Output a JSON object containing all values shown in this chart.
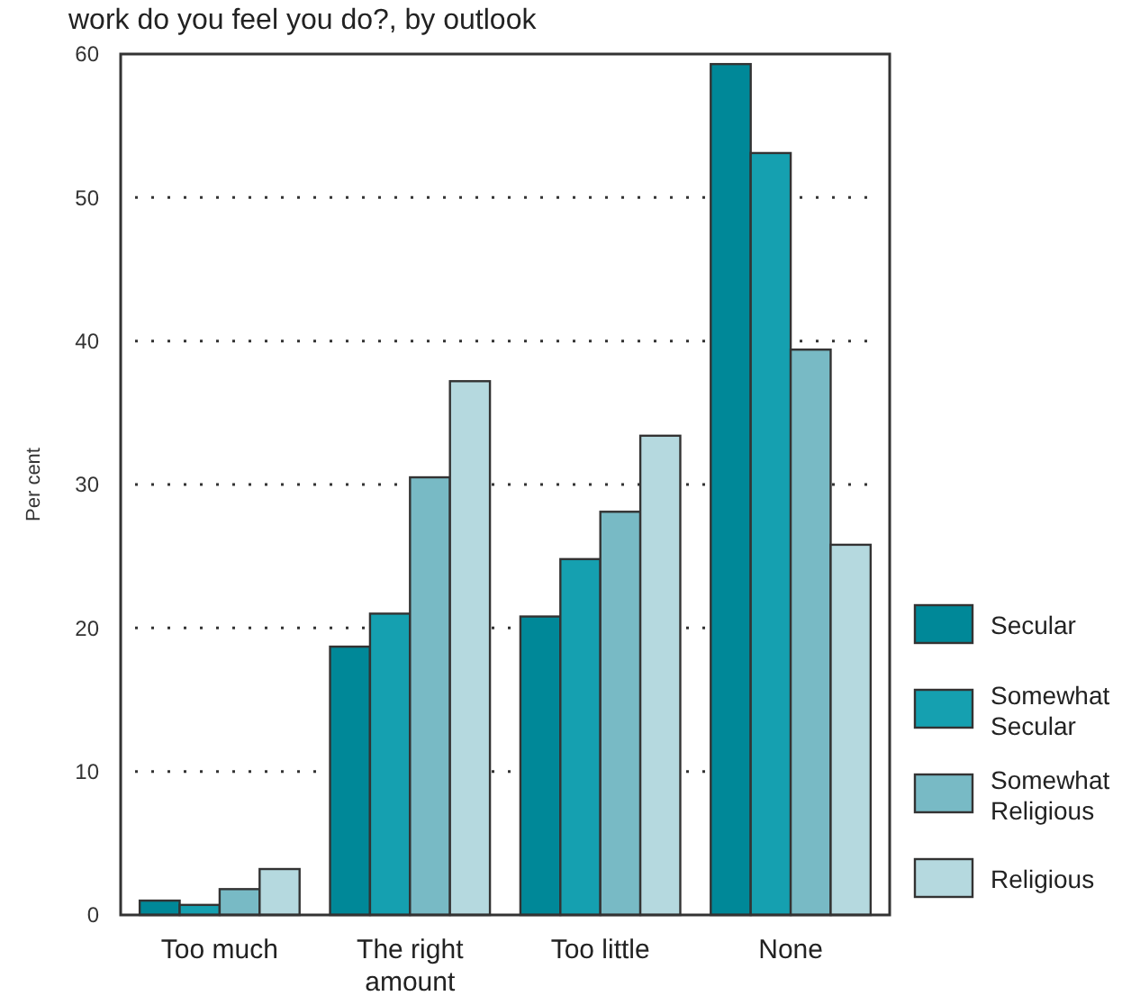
{
  "chart_data": {
    "type": "bar",
    "title": "work do you feel you do?, by outlook",
    "ylabel": "Per cent",
    "categories": [
      "Too much",
      "The right amount",
      "Too little",
      "None"
    ],
    "series": [
      {
        "name": "Secular",
        "color": "#008898",
        "values": [
          1.0,
          18.7,
          20.8,
          59.3
        ]
      },
      {
        "name": "Somewhat Secular",
        "color": "#15a0b0",
        "values": [
          0.7,
          21.0,
          24.8,
          53.1
        ]
      },
      {
        "name": "Somewhat Religious",
        "color": "#78bac5",
        "values": [
          1.8,
          30.5,
          28.1,
          39.4
        ]
      },
      {
        "name": "Religious",
        "color": "#b5d9df",
        "values": [
          3.2,
          37.2,
          33.4,
          25.8
        ]
      }
    ],
    "ylim": [
      0,
      60
    ],
    "yticks": [
      0,
      10,
      20,
      30,
      40,
      50,
      60
    ],
    "grid": "y",
    "legend": "right"
  }
}
